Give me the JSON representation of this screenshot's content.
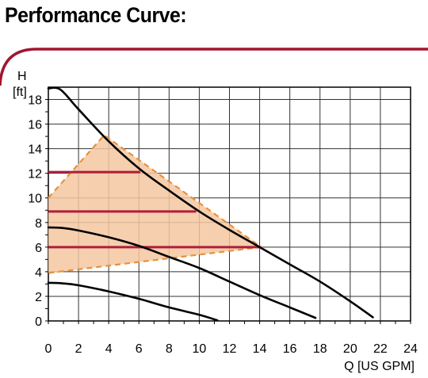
{
  "page": {
    "title": "Performance Curve:"
  },
  "colors": {
    "accent_frame": "#a3152f",
    "operating_zone_fill": "#f4c7a1",
    "operating_zone_edge": "#e8913c",
    "setpoint_line": "#b01e3a",
    "curve": "#000000",
    "grid": "#333333"
  },
  "chart_data": {
    "type": "line",
    "title": "Performance Curve:",
    "xlabel": "Q [US GPM]",
    "ylabel_line1": "H",
    "ylabel_line2": "[ft]",
    "xlim": [
      0,
      24
    ],
    "ylim": [
      0,
      19
    ],
    "grid": true,
    "x_ticks": [
      0,
      2,
      4,
      6,
      8,
      10,
      12,
      14,
      16,
      18,
      20,
      22,
      24
    ],
    "y_ticks": [
      0,
      2,
      4,
      6,
      8,
      10,
      12,
      14,
      16,
      18
    ],
    "series": [
      {
        "x": [
          0,
          0.8,
          2,
          4,
          6,
          8,
          10,
          12,
          14,
          16,
          18,
          20,
          21.5
        ],
        "y": [
          18.9,
          18.8,
          17.2,
          14.6,
          12.4,
          10.6,
          8.9,
          7.4,
          6.0,
          4.6,
          3.2,
          1.6,
          0.3
        ]
      },
      {
        "x": [
          0,
          1,
          2,
          4,
          6,
          8,
          10,
          12,
          14,
          16,
          17.7
        ],
        "y": [
          7.6,
          7.55,
          7.35,
          6.8,
          6.1,
          5.2,
          4.3,
          3.2,
          2.1,
          1.1,
          0.25
        ]
      },
      {
        "x": [
          0,
          1,
          2,
          4,
          6,
          8,
          10,
          11.2
        ],
        "y": [
          3.1,
          3.05,
          2.9,
          2.4,
          1.8,
          1.1,
          0.5,
          0.05
        ]
      }
    ],
    "operating_zone": {
      "x": [
        0,
        3.7,
        14.1,
        0
      ],
      "y": [
        10,
        15.1,
        6.0,
        3.9
      ]
    },
    "setpoint_lines": [
      {
        "head": 12.1,
        "x_from": 0,
        "x_to": 6.1
      },
      {
        "head": 8.9,
        "x_from": 0,
        "x_to": 9.8
      },
      {
        "head": 6.0,
        "x_from": 0,
        "x_to": 14.1
      }
    ]
  }
}
